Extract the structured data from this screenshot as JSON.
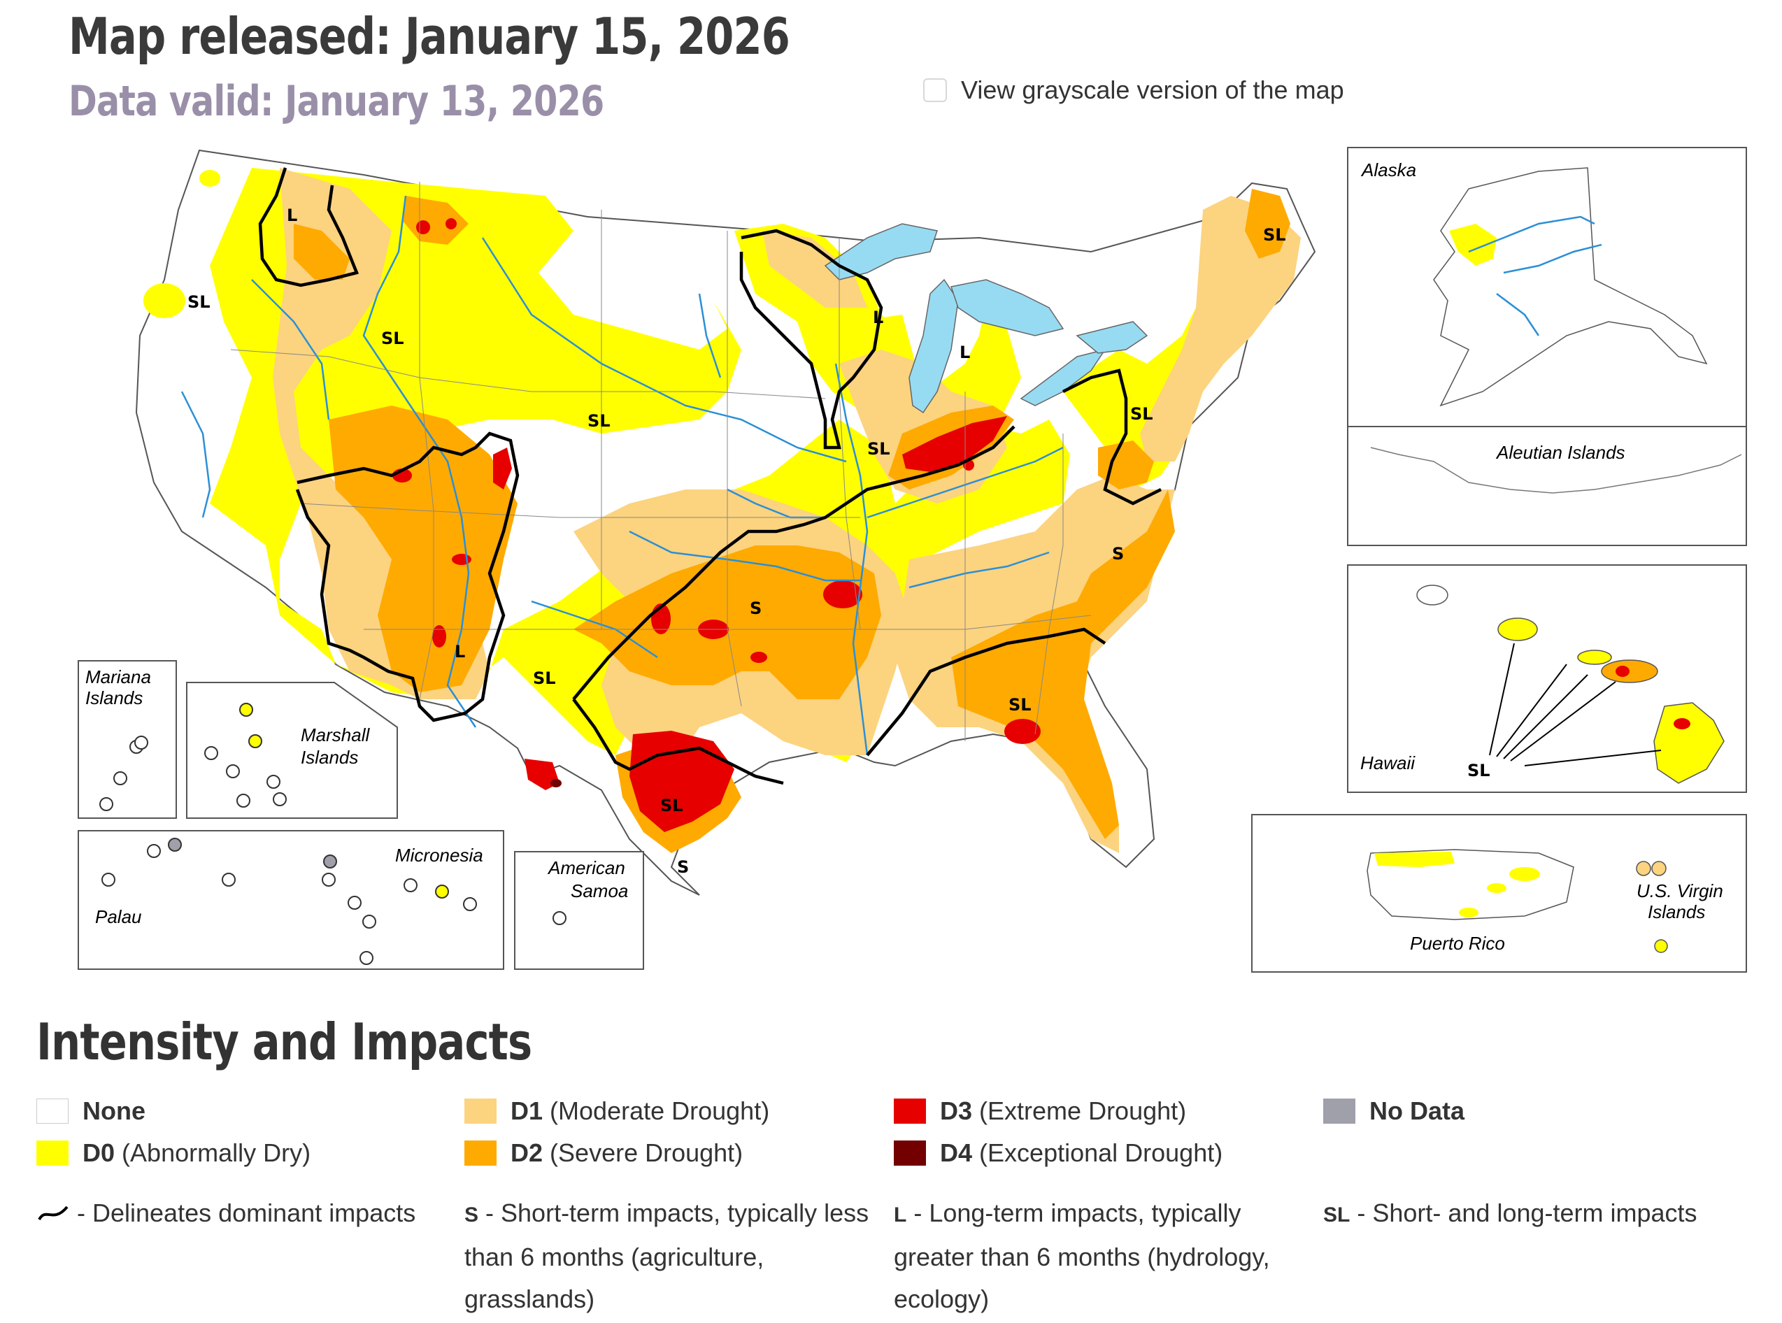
{
  "header": {
    "released": "Map released: January 15, 2026",
    "valid": "Data valid: January 13, 2026",
    "grayscale_label": "View grayscale version of the map"
  },
  "colors": {
    "none": "#ffffff",
    "d0": "#ffff00",
    "d1": "#fcd37f",
    "d2": "#ffaa00",
    "d3": "#e60000",
    "d4": "#730000",
    "no_data": "#9fa0aa",
    "water": "#97dbf2",
    "rivers": "#2b8fd6"
  },
  "map": {
    "inset_labels": {
      "alaska": "Alaska",
      "aleutian": "Aleutian Islands",
      "hawaii": "Hawaii",
      "puerto_rico": "Puerto Rico",
      "usvi_1": "U.S. Virgin",
      "usvi_2": "Islands",
      "mariana_1": "Mariana",
      "mariana_2": "Islands",
      "marshall_1": "Marshall",
      "marshall_2": "Islands",
      "micronesia": "Micronesia",
      "palau": "Palau",
      "samoa_1": "American",
      "samoa_2": "Samoa"
    },
    "impact_labels": {
      "sl": "SL",
      "s": "S",
      "l": "L"
    }
  },
  "legend": {
    "title": "Intensity and Impacts",
    "categories": [
      {
        "code": "None",
        "desc": ""
      },
      {
        "code": "D0",
        "desc": "(Abnormally Dry)"
      },
      {
        "code": "D1",
        "desc": "(Moderate Drought)"
      },
      {
        "code": "D2",
        "desc": "(Severe Drought)"
      },
      {
        "code": "D3",
        "desc": "(Extreme Drought)"
      },
      {
        "code": "D4",
        "desc": "(Exceptional Drought)"
      },
      {
        "code": "No Data",
        "desc": ""
      }
    ],
    "impacts": {
      "line": "- Delineates dominant impacts",
      "s_code": "S",
      "s_line1": "- Short-term impacts, typically less",
      "s_line2": "than 6 months (agriculture,",
      "s_line3": "grasslands)",
      "l_code": "L",
      "l_line1": "- Long-term impacts, typically",
      "l_line2": "greater than 6 months (hydrology,",
      "l_line3": "ecology)",
      "sl_code": "SL",
      "sl_line1": "- Short- and long-term impacts"
    }
  }
}
